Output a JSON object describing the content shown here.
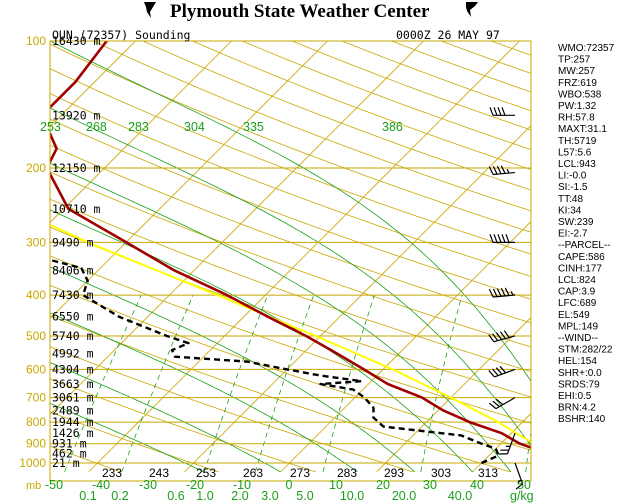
{
  "header": {
    "title": "Plymouth State Weather Center"
  },
  "sounding": {
    "station": "OUN (72357) Sounding",
    "time": "0000Z 26 MAY 97"
  },
  "colors": {
    "background": "#ffffff",
    "isobar": "#c8a800",
    "isotherm": "#c8a800",
    "dry_adiabat": "#c8a800",
    "moist_adiabat": "#1aa01a",
    "mixing_ratio": "#1aa01a",
    "temperature": "#a00000",
    "dewpoint": "#000000",
    "parcel": "#ffff00",
    "text": "#000000"
  },
  "indices": [
    "WMO:72357",
    "TP:257",
    "MW:257",
    "FRZ:619",
    "WBO:538",
    "PW:1.32",
    "RH:57.8",
    "MAXT:31.1",
    "TH:5719",
    "L57:5.6",
    "LCL:943",
    "LI:-0.0",
    "SI:-1.5",
    "TT:48",
    "KI:34",
    "SW:239",
    "EI:-2.7",
    "--PARCEL--",
    "CAPE:586",
    "CINH:177",
    "LCL:824",
    "CAP:3.9",
    "LFC:689",
    "EL:549",
    "MPL:149",
    "--WIND--",
    "STM:282/22",
    "HEL:154",
    "SHR+:0.0",
    "SRDS:79",
    "EHI:0.5",
    "BRN:4.2",
    "BSHR:140"
  ],
  "chart_data": {
    "type": "line",
    "title": "OUN (72357) Sounding",
    "xlabel": "",
    "ylabel": "mb",
    "pressure_ticks": [
      {
        "p": 100,
        "label": "100"
      },
      {
        "p": 200,
        "label": "200"
      },
      {
        "p": 300,
        "label": "300"
      },
      {
        "p": 400,
        "label": "400"
      },
      {
        "p": 500,
        "label": "500"
      },
      {
        "p": 600,
        "label": "600"
      },
      {
        "p": 700,
        "label": "700"
      },
      {
        "p": 800,
        "label": "800"
      },
      {
        "p": 900,
        "label": "900"
      },
      {
        "p": 1000,
        "label": "1000"
      }
    ],
    "height_labels": [
      {
        "p": 100,
        "label": "16430 m"
      },
      {
        "p": 150,
        "label": "13920 m"
      },
      {
        "p": 200,
        "label": "12150 m"
      },
      {
        "p": 250,
        "label": "10710 m"
      },
      {
        "p": 300,
        "label": "9490 m"
      },
      {
        "p": 350,
        "label": "8406 m"
      },
      {
        "p": 400,
        "label": "7430 m"
      },
      {
        "p": 450,
        "label": "6550 m"
      },
      {
        "p": 500,
        "label": "5740 m"
      },
      {
        "p": 550,
        "label": "4992 m"
      },
      {
        "p": 600,
        "label": "4304 m"
      },
      {
        "p": 650,
        "label": "3663 m"
      },
      {
        "p": 700,
        "label": "3061 m"
      },
      {
        "p": 750,
        "label": "2489 m"
      },
      {
        "p": 800,
        "label": "1944 m"
      },
      {
        "p": 850,
        "label": "1426 m"
      },
      {
        "p": 900,
        "label": "931 m"
      },
      {
        "p": 950,
        "label": "462 m"
      },
      {
        "p": 1000,
        "label": "21 m"
      }
    ],
    "temp_labels": [
      "-50",
      "-40",
      "-30",
      "-20",
      "-10",
      "0",
      "10",
      "20",
      "30",
      "40",
      "50"
    ],
    "bottom_theta_labels": [
      "233",
      "243",
      "253",
      "263",
      "273",
      "283",
      "293",
      "303",
      "313"
    ],
    "theta_e_labels": [
      "253",
      "268",
      "283",
      "304",
      "335",
      "386"
    ],
    "mixing_ratio_labels": [
      "0.1",
      "0.2",
      "0.6",
      "1.0",
      "2.0",
      "3.0",
      "5.0",
      "10.0",
      "20.0",
      "40.0"
    ],
    "mixing_ratio_unit": "g/kg",
    "temperature": [
      {
        "p": 1000,
        "t": 32.5
      },
      {
        "p": 970,
        "t": 29
      },
      {
        "p": 925,
        "t": 24
      },
      {
        "p": 900,
        "t": 22
      },
      {
        "p": 850,
        "t": 19
      },
      {
        "p": 800,
        "t": 14.5
      },
      {
        "p": 750,
        "t": 10.5
      },
      {
        "p": 700,
        "t": 7
      },
      {
        "p": 650,
        "t": 2
      },
      {
        "p": 600,
        "t": -2
      },
      {
        "p": 550,
        "t": -6.5
      },
      {
        "p": 500,
        "t": -11.5
      },
      {
        "p": 450,
        "t": -17.5
      },
      {
        "p": 400,
        "t": -24
      },
      {
        "p": 350,
        "t": -32
      },
      {
        "p": 300,
        "t": -40
      },
      {
        "p": 250,
        "t": -49.5
      },
      {
        "p": 200,
        "t": -56
      },
      {
        "p": 180,
        "t": -57
      },
      {
        "p": 150,
        "t": -62
      },
      {
        "p": 125,
        "t": -62
      },
      {
        "p": 100,
        "t": -63
      }
    ],
    "dewpoint": [
      {
        "p": 1000,
        "t": 20
      },
      {
        "p": 960,
        "t": 21
      },
      {
        "p": 925,
        "t": 20
      },
      {
        "p": 900,
        "t": 18
      },
      {
        "p": 860,
        "t": 15
      },
      {
        "p": 820,
        "t": 6
      },
      {
        "p": 780,
        "t": 4
      },
      {
        "p": 740,
        "t": 3
      },
      {
        "p": 700,
        "t": 1
      },
      {
        "p": 670,
        "t": -1
      },
      {
        "p": 650,
        "t": -5
      },
      {
        "p": 640,
        "t": -1
      },
      {
        "p": 620,
        "t": -6
      },
      {
        "p": 600,
        "t": -10
      },
      {
        "p": 575,
        "t": -15
      },
      {
        "p": 560,
        "t": -23
      },
      {
        "p": 540,
        "t": -24
      },
      {
        "p": 520,
        "t": -23
      },
      {
        "p": 500,
        "t": -26
      },
      {
        "p": 450,
        "t": -33
      },
      {
        "p": 400,
        "t": -39
      },
      {
        "p": 370,
        "t": -40
      },
      {
        "p": 345,
        "t": -42
      },
      {
        "p": 320,
        "t": -49
      },
      {
        "p": 300,
        "t": -53
      },
      {
        "p": 260,
        "t": -62
      },
      {
        "p": 235,
        "t": -66
      },
      {
        "p": 200,
        "t": -70
      },
      {
        "p": 185,
        "t": -71
      },
      {
        "p": 160,
        "t": -72
      },
      {
        "p": 140,
        "t": -73
      },
      {
        "p": 120,
        "t": -74
      },
      {
        "p": 100,
        "t": -76
      }
    ],
    "parcel": [
      {
        "p": 1000,
        "t": 33
      },
      {
        "p": 943,
        "t": 26
      },
      {
        "p": 900,
        "t": 23.5
      },
      {
        "p": 850,
        "t": 20.5
      },
      {
        "p": 800,
        "t": 17.5
      },
      {
        "p": 700,
        "t": 10
      },
      {
        "p": 600,
        "t": 1
      },
      {
        "p": 500,
        "t": -10.5
      },
      {
        "p": 400,
        "t": -25
      },
      {
        "p": 300,
        "t": -44
      },
      {
        "p": 250,
        "t": -55
      },
      {
        "p": 200,
        "t": -68
      },
      {
        "p": 150,
        "t": -85
      },
      {
        "p": 120,
        "t": -96
      }
    ],
    "wind_barbs": [
      {
        "p": 150,
        "dir": 270,
        "speed_kt": 40
      },
      {
        "p": 205,
        "dir": 265,
        "speed_kt": 45
      },
      {
        "p": 300,
        "dir": 270,
        "speed_kt": 50
      },
      {
        "p": 400,
        "dir": 265,
        "speed_kt": 55
      },
      {
        "p": 500,
        "dir": 255,
        "speed_kt": 50
      },
      {
        "p": 600,
        "dir": 250,
        "speed_kt": 40
      },
      {
        "p": 700,
        "dir": 240,
        "speed_kt": 30
      },
      {
        "p": 850,
        "dir": 200,
        "speed_kt": 25
      },
      {
        "p": 1000,
        "dir": 160,
        "speed_kt": 15
      }
    ]
  }
}
